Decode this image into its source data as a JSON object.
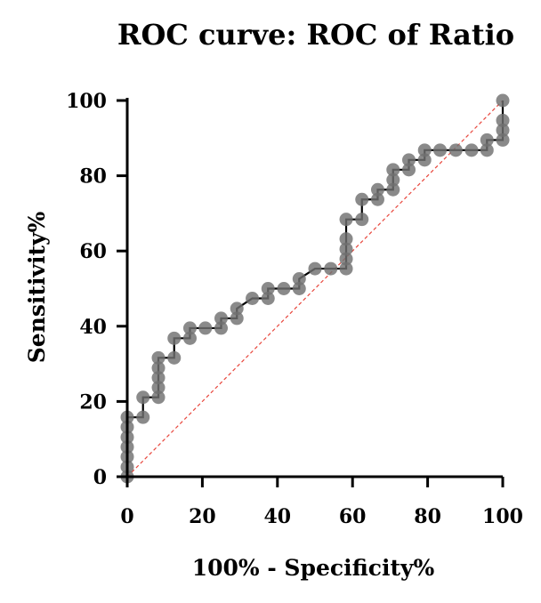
{
  "chart_data": {
    "type": "line",
    "title": "ROC curve: ROC of Ratio",
    "xlabel": "100% - Specificity%",
    "ylabel": "Sensitivity%",
    "xlim": [
      0,
      100
    ],
    "ylim": [
      0,
      100
    ],
    "xticks": [
      0,
      20,
      40,
      60,
      80,
      100
    ],
    "yticks": [
      0,
      20,
      40,
      60,
      80,
      100
    ],
    "grid": false,
    "legend": "none",
    "colors": {
      "curve": "#000000",
      "points": "#707070",
      "reference": "#e8463c"
    },
    "series": [
      {
        "values": [
          [
            0,
            0
          ],
          [
            0,
            2.6
          ],
          [
            0,
            5.3
          ],
          [
            0,
            7.9
          ],
          [
            0,
            10.5
          ],
          [
            0,
            13.2
          ],
          [
            0,
            15.8
          ],
          [
            4.2,
            15.8
          ],
          [
            4.2,
            21.1
          ],
          [
            8.3,
            21.1
          ],
          [
            8.3,
            23.7
          ],
          [
            8.3,
            26.3
          ],
          [
            8.3,
            28.9
          ],
          [
            8.3,
            31.6
          ],
          [
            12.5,
            31.6
          ],
          [
            12.5,
            36.8
          ],
          [
            16.7,
            36.8
          ],
          [
            16.7,
            39.5
          ],
          [
            20.8,
            39.5
          ],
          [
            25,
            39.5
          ],
          [
            25,
            42.1
          ],
          [
            29.2,
            42.1
          ],
          [
            29.2,
            44.7
          ],
          [
            33.3,
            47.4
          ],
          [
            37.5,
            47.4
          ],
          [
            37.5,
            50
          ],
          [
            41.7,
            50
          ],
          [
            45.8,
            50
          ],
          [
            45.8,
            52.6
          ],
          [
            50,
            55.3
          ],
          [
            54.2,
            55.3
          ],
          [
            58.3,
            55.3
          ],
          [
            58.3,
            57.9
          ],
          [
            58.3,
            60.5
          ],
          [
            58.3,
            63.2
          ],
          [
            58.3,
            68.4
          ],
          [
            62.5,
            68.4
          ],
          [
            62.5,
            73.7
          ],
          [
            66.7,
            73.7
          ],
          [
            66.7,
            76.3
          ],
          [
            70.8,
            76.3
          ],
          [
            70.8,
            78.9
          ],
          [
            70.8,
            81.6
          ],
          [
            75,
            81.6
          ],
          [
            75,
            84.2
          ],
          [
            79.2,
            84.2
          ],
          [
            79.2,
            86.8
          ],
          [
            83.3,
            86.8
          ],
          [
            87.5,
            86.8
          ],
          [
            91.7,
            86.8
          ],
          [
            95.8,
            86.8
          ],
          [
            95.8,
            89.5
          ],
          [
            100,
            89.5
          ],
          [
            100,
            92.1
          ],
          [
            100,
            94.7
          ],
          [
            100,
            100
          ]
        ]
      },
      {
        "values": [
          [
            0,
            0
          ],
          [
            100,
            100
          ]
        ]
      }
    ]
  }
}
